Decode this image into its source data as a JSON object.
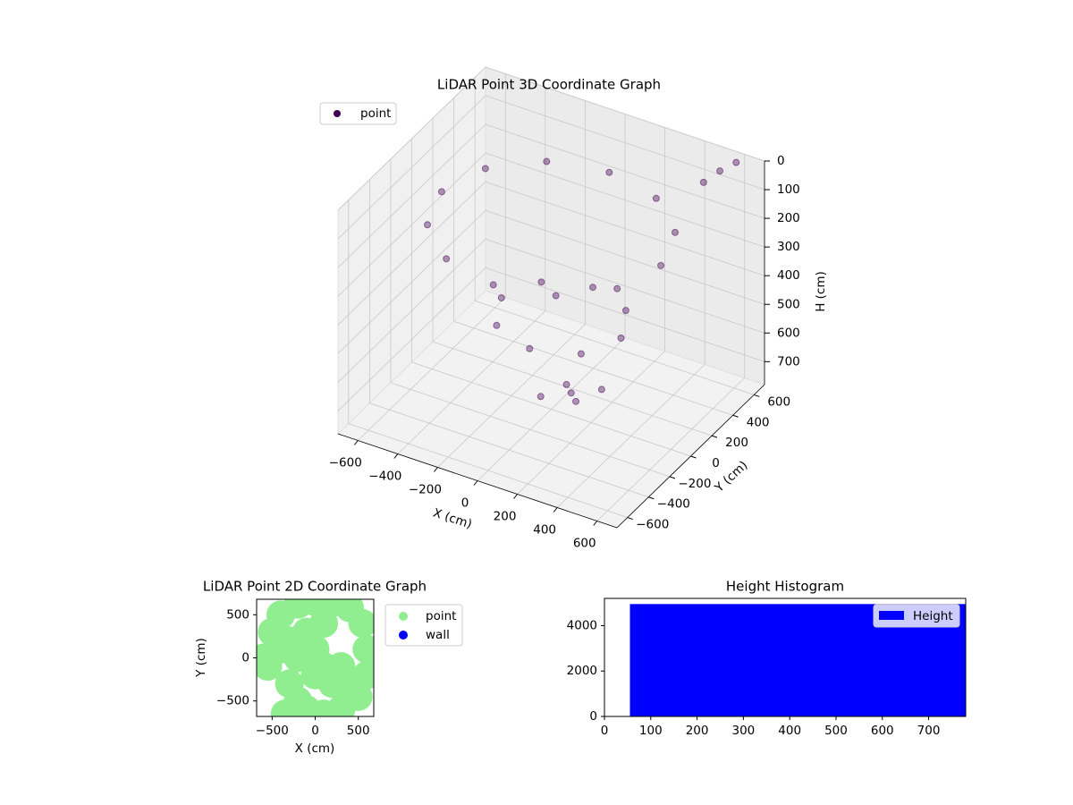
{
  "chart_data": [
    {
      "type": "scatter3d",
      "title": "LiDAR Point 3D Coordinate Graph",
      "xlabel": "X (cm)",
      "ylabel": "Y (cm)",
      "zlabel": "H (cm)",
      "xlim": [
        -700,
        700
      ],
      "ylim": [
        -700,
        700
      ],
      "zlim": [
        780,
        0
      ],
      "xticks": [
        {
          "value": -600,
          "label": "−600"
        },
        {
          "value": -400,
          "label": "−400"
        },
        {
          "value": -200,
          "label": "−200"
        },
        0,
        200,
        400,
        600
      ],
      "yticks": [
        {
          "value": -600,
          "label": "−600"
        },
        {
          "value": -400,
          "label": "−400"
        },
        {
          "value": -200,
          "label": "−200"
        },
        0,
        200,
        400,
        600
      ],
      "zticks": [
        0,
        100,
        200,
        300,
        400,
        500,
        600,
        700
      ],
      "grid": true,
      "legend": "upper left",
      "series": [
        {
          "name": "point",
          "color": "#440154",
          "x": [
            550,
            476,
            275,
            0,
            -275,
            -476,
            -550,
            -476,
            -275,
            0,
            275,
            476,
            350,
            262,
            50,
            -162,
            -250,
            -162,
            50,
            262,
            100,
            150,
            50,
            0,
            200,
            500,
            550,
            600
          ],
          "y": [
            0,
            275,
            476,
            550,
            476,
            275,
            0,
            -275,
            -476,
            -550,
            -476,
            -275,
            0,
            212,
            300,
            212,
            0,
            -212,
            -300,
            -212,
            0,
            -50,
            50,
            -100,
            100,
            500,
            560,
            620
          ],
          "z": [
            150,
            150,
            150,
            150,
            150,
            150,
            150,
            150,
            150,
            150,
            150,
            150,
            450,
            450,
            450,
            450,
            450,
            450,
            450,
            450,
            700,
            700,
            700,
            700,
            700,
            50,
            20,
            0
          ]
        }
      ]
    },
    {
      "type": "scatter",
      "title": "LiDAR Point 2D Coordinate Graph",
      "xlabel": "X (cm)",
      "ylabel": "Y (cm)",
      "xlim": [
        -680,
        680
      ],
      "ylim": [
        -680,
        680
      ],
      "xticks": [
        {
          "value": -500,
          "label": "−500"
        },
        0,
        500
      ],
      "yticks": [
        {
          "value": -500,
          "label": "−500"
        },
        0,
        500
      ],
      "legend": "outside right",
      "series": [
        {
          "name": "point",
          "color": "#90ee90",
          "x": [
            -500,
            -400,
            -200,
            0,
            200,
            400,
            550,
            600,
            -600,
            -550,
            600,
            500,
            300,
            100,
            -100,
            -300,
            -200,
            0,
            100,
            200,
            300,
            400,
            -300,
            -200,
            -100,
            -400,
            0,
            100,
            -350
          ],
          "y": [
            300,
            500,
            620,
            650,
            640,
            580,
            400,
            100,
            0,
            -100,
            -200,
            -450,
            -600,
            -650,
            -600,
            -300,
            -500,
            -200,
            -100,
            -300,
            -100,
            -300,
            200,
            0,
            300,
            100,
            100,
            400,
            -650
          ]
        },
        {
          "name": "wall",
          "color": "#0000ff",
          "x": [],
          "y": []
        }
      ]
    },
    {
      "type": "histogram",
      "title": "Height Histogram",
      "bins": [
        55,
        780
      ],
      "counts": [
        4950
      ],
      "xlim": [
        0,
        780
      ],
      "ylim": [
        0,
        5200
      ],
      "xticks": [
        0,
        100,
        200,
        300,
        400,
        500,
        600,
        700
      ],
      "yticks": [
        0,
        2000,
        4000
      ],
      "legend": "upper right",
      "series_name": "Height",
      "color": "#0000ff"
    }
  ]
}
